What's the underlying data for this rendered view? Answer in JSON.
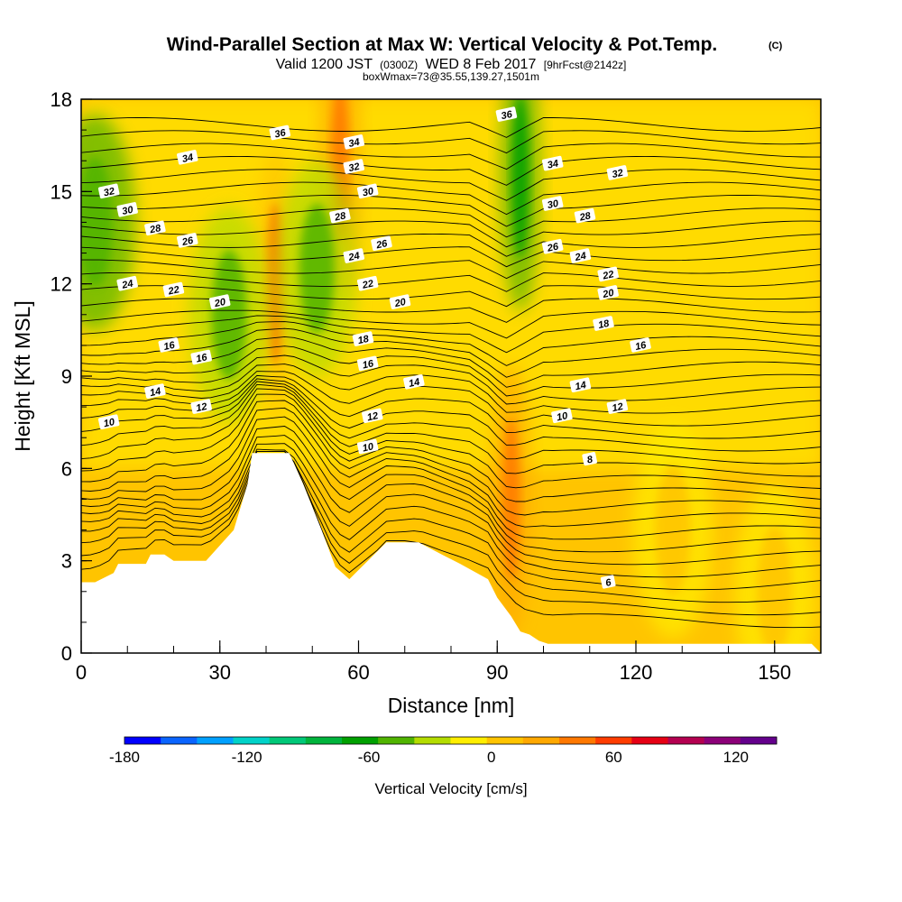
{
  "header": {
    "title": "Wind-Parallel Section at Max W: Vertical Velocity & Pot.Temp.",
    "copyright": "(C)",
    "valid_a": "Valid 1200 JST",
    "valid_b": "(0300Z)",
    "valid_c": "WED 8 Feb 2017",
    "valid_d": "[9hrFcst@2142z]",
    "boxline": "boxWmax=73@35.55,139.27,1501m"
  },
  "chart_data": {
    "type": "heatmap",
    "title": "Wind-Parallel Section at Max W: Vertical Velocity & Pot.Temp.",
    "xlabel": "Distance [nm]",
    "ylabel": "Height [Kft MSL]",
    "xlim": [
      0,
      160
    ],
    "ylim": [
      0,
      18
    ],
    "x_ticks": [
      "0",
      "30",
      "60",
      "90",
      "120",
      "150"
    ],
    "y_ticks": [
      "0",
      "3",
      "6",
      "9",
      "12",
      "15",
      "18"
    ],
    "colorbar": {
      "label": "Vertical Velocity [cm/s]",
      "tick_labels": [
        "-180",
        "-120",
        "-60",
        "0",
        "60",
        "120"
      ],
      "tick_values": [
        -180,
        -120,
        -60,
        0,
        60,
        120
      ],
      "range": [
        -180,
        140
      ],
      "step": 20,
      "colors": [
        "#0000ff",
        "#0a64ff",
        "#00a0ff",
        "#00d2c8",
        "#00c878",
        "#00b43c",
        "#00a000",
        "#50b400",
        "#b4dc00",
        "#ffee00",
        "#ffc400",
        "#ffa800",
        "#ff7800",
        "#ff3c00",
        "#e60014",
        "#b40050",
        "#8c0078",
        "#64008c"
      ]
    },
    "terrain": {
      "x": [
        0,
        3,
        7,
        8,
        14,
        15,
        18,
        20,
        27,
        30,
        33,
        36,
        37,
        45,
        48,
        52,
        55,
        58,
        62,
        66,
        73,
        78,
        82,
        88,
        90,
        93,
        95,
        97,
        99,
        101,
        158
      ],
      "height": [
        2.3,
        2.3,
        2.6,
        2.9,
        2.9,
        3.2,
        3.2,
        3.0,
        3.0,
        3.5,
        4.0,
        5.5,
        6.5,
        6.5,
        5.5,
        4.0,
        2.8,
        2.4,
        3.0,
        3.6,
        3.6,
        3.2,
        2.9,
        2.4,
        1.8,
        1.2,
        0.7,
        0.6,
        0.4,
        0.3,
        0.3
      ]
    },
    "w_features": [
      {
        "x": 3,
        "y": 14.0,
        "w": -40
      },
      {
        "x": 42,
        "y": 12.0,
        "w": 60
      },
      {
        "x": 56,
        "y": 16.0,
        "w": 70
      },
      {
        "x": 32,
        "y": 11.0,
        "w": -30
      },
      {
        "x": 51,
        "y": 12.5,
        "w": -30
      },
      {
        "x": 93,
        "y": 5.0,
        "w": 70
      },
      {
        "x": 95,
        "y": 15.5,
        "w": -60
      },
      {
        "x": 128,
        "y": 4.0,
        "w": 20
      },
      {
        "x": 150,
        "y": 2.0,
        "w": 20
      }
    ],
    "isentropes": [
      {
        "label": "6",
        "x": 114,
        "y": 2.3
      },
      {
        "label": "8",
        "x": 110,
        "y": 6.3
      },
      {
        "label": "10",
        "x": 6,
        "y": 7.5
      },
      {
        "label": "10",
        "x": 62,
        "y": 6.7
      },
      {
        "label": "10",
        "x": 104,
        "y": 7.7
      },
      {
        "label": "12",
        "x": 26,
        "y": 8.0
      },
      {
        "label": "12",
        "x": 63,
        "y": 7.7
      },
      {
        "label": "12",
        "x": 116,
        "y": 8.0
      },
      {
        "label": "14",
        "x": 16,
        "y": 8.5
      },
      {
        "label": "14",
        "x": 72,
        "y": 8.8
      },
      {
        "label": "14",
        "x": 108,
        "y": 8.7
      },
      {
        "label": "16",
        "x": 19,
        "y": 10.0
      },
      {
        "label": "16",
        "x": 26,
        "y": 9.6
      },
      {
        "label": "16",
        "x": 62,
        "y": 9.4
      },
      {
        "label": "16",
        "x": 121,
        "y": 10.0
      },
      {
        "label": "18",
        "x": 61,
        "y": 10.2
      },
      {
        "label": "18",
        "x": 113,
        "y": 10.7
      },
      {
        "label": "20",
        "x": 30,
        "y": 11.4
      },
      {
        "label": "20",
        "x": 69,
        "y": 11.4
      },
      {
        "label": "20",
        "x": 114,
        "y": 11.7
      },
      {
        "label": "22",
        "x": 20,
        "y": 11.8
      },
      {
        "label": "22",
        "x": 62,
        "y": 12.0
      },
      {
        "label": "22",
        "x": 114,
        "y": 12.3
      },
      {
        "label": "24",
        "x": 10,
        "y": 12.0
      },
      {
        "label": "24",
        "x": 59,
        "y": 12.9
      },
      {
        "label": "24",
        "x": 108,
        "y": 12.9
      },
      {
        "label": "26",
        "x": 23,
        "y": 13.4
      },
      {
        "label": "26",
        "x": 65,
        "y": 13.3
      },
      {
        "label": "26",
        "x": 102,
        "y": 13.2
      },
      {
        "label": "28",
        "x": 16,
        "y": 13.8
      },
      {
        "label": "28",
        "x": 56,
        "y": 14.2
      },
      {
        "label": "28",
        "x": 109,
        "y": 14.2
      },
      {
        "label": "30",
        "x": 10,
        "y": 14.4
      },
      {
        "label": "30",
        "x": 62,
        "y": 15.0
      },
      {
        "label": "30",
        "x": 102,
        "y": 14.6
      },
      {
        "label": "32",
        "x": 6,
        "y": 15.0
      },
      {
        "label": "32",
        "x": 59,
        "y": 15.8
      },
      {
        "label": "32",
        "x": 116,
        "y": 15.6
      },
      {
        "label": "34",
        "x": 23,
        "y": 16.1
      },
      {
        "label": "34",
        "x": 59,
        "y": 16.6
      },
      {
        "label": "34",
        "x": 102,
        "y": 15.9
      },
      {
        "label": "36",
        "x": 43,
        "y": 16.9
      },
      {
        "label": "36",
        "x": 92,
        "y": 17.5
      }
    ]
  }
}
